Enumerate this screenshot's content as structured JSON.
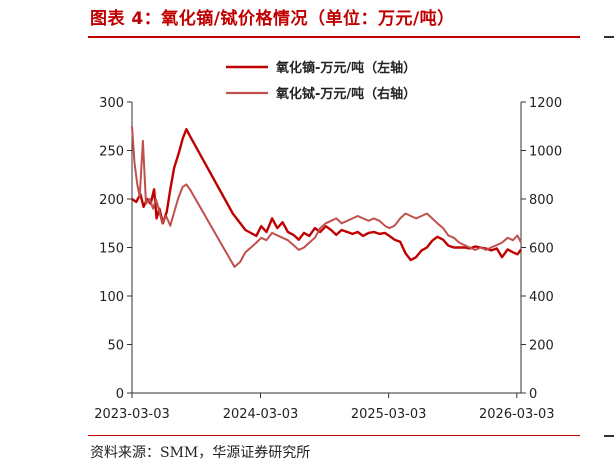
{
  "title": "图表 4：氧化镝/铽价格情况（单位：万元/吨）",
  "source": "资料来源：SMM，华源证券研究所",
  "colors": {
    "accent": "#c00000",
    "series1": "#c00000",
    "series2": "#c0504d"
  },
  "chart_data": {
    "type": "line",
    "title": "图表 4：氧化镝/铽价格情况（单位：万元/吨）",
    "x_ticks": [
      "2023-03-03",
      "2024-03-03",
      "2025-03-03",
      "2026-03-03"
    ],
    "x_range": [
      "2023-03-03",
      "2026-03-15"
    ],
    "y_left": {
      "range": [
        0,
        300
      ],
      "ticks": [
        0,
        50,
        100,
        150,
        200,
        250,
        300
      ]
    },
    "y_right": {
      "range": [
        0,
        1200
      ],
      "ticks": [
        0,
        200,
        400,
        600,
        800,
        1000,
        1200
      ]
    },
    "grid": false,
    "legend_position": "top-center",
    "series": [
      {
        "name": "氧化镝-万元/吨（左轴）",
        "axis": "left",
        "color": "#c00000",
        "points": [
          [
            "2023-03-03",
            200
          ],
          [
            "2023-03-15",
            197
          ],
          [
            "2023-03-27",
            205
          ],
          [
            "2023-04-05",
            192
          ],
          [
            "2023-04-15",
            200
          ],
          [
            "2023-04-25",
            195
          ],
          [
            "2023-05-05",
            210
          ],
          [
            "2023-05-12",
            180
          ],
          [
            "2023-05-20",
            190
          ],
          [
            "2023-05-30",
            175
          ],
          [
            "2023-06-10",
            187
          ],
          [
            "2023-06-20",
            210
          ],
          [
            "2023-07-01",
            232
          ],
          [
            "2023-07-15",
            248
          ],
          [
            "2023-07-25",
            262
          ],
          [
            "2023-08-05",
            272
          ],
          [
            "2023-08-15",
            265
          ],
          [
            "2023-12-15",
            185
          ],
          [
            "2024-01-20",
            168
          ],
          [
            "2024-02-20",
            162
          ],
          [
            "2024-03-05",
            172
          ],
          [
            "2024-03-20",
            166
          ],
          [
            "2024-04-05",
            180
          ],
          [
            "2024-04-20",
            170
          ],
          [
            "2024-05-05",
            176
          ],
          [
            "2024-05-20",
            166
          ],
          [
            "2024-06-05",
            163
          ],
          [
            "2024-06-20",
            158
          ],
          [
            "2024-07-05",
            165
          ],
          [
            "2024-07-20",
            162
          ],
          [
            "2024-08-05",
            170
          ],
          [
            "2024-08-20",
            166
          ],
          [
            "2024-09-05",
            172
          ],
          [
            "2024-09-20",
            168
          ],
          [
            "2024-10-05",
            163
          ],
          [
            "2024-10-20",
            168
          ],
          [
            "2024-11-05",
            166
          ],
          [
            "2024-11-20",
            164
          ],
          [
            "2024-12-05",
            166
          ],
          [
            "2024-12-20",
            162
          ],
          [
            "2025-01-05",
            165
          ],
          [
            "2025-01-20",
            166
          ],
          [
            "2025-02-05",
            164
          ],
          [
            "2025-02-20",
            165
          ],
          [
            "2025-03-05",
            162
          ],
          [
            "2025-03-20",
            158
          ],
          [
            "2025-04-05",
            156
          ],
          [
            "2025-04-20",
            144
          ],
          [
            "2025-05-05",
            137
          ],
          [
            "2025-05-20",
            140
          ],
          [
            "2025-06-05",
            147
          ],
          [
            "2025-06-20",
            150
          ],
          [
            "2025-07-05",
            157
          ],
          [
            "2025-07-20",
            161
          ],
          [
            "2025-08-05",
            158
          ],
          [
            "2025-08-20",
            152
          ],
          [
            "2025-09-05",
            150
          ],
          [
            "2025-09-20",
            150
          ],
          [
            "2025-10-05",
            150
          ],
          [
            "2025-10-20",
            149
          ],
          [
            "2025-11-05",
            151
          ],
          [
            "2025-11-20",
            150
          ],
          [
            "2025-12-05",
            149
          ],
          [
            "2025-12-20",
            147
          ],
          [
            "2026-01-05",
            149
          ],
          [
            "2026-01-20",
            140
          ],
          [
            "2026-02-05",
            148
          ],
          [
            "2026-02-20",
            145
          ],
          [
            "2026-03-05",
            143
          ],
          [
            "2026-03-15",
            148
          ]
        ]
      },
      {
        "name": "氧化铽-万元/吨（右轴）",
        "axis": "right",
        "color": "#c0504d",
        "points": [
          [
            "2023-03-03",
            1100
          ],
          [
            "2023-03-10",
            950
          ],
          [
            "2023-03-18",
            860
          ],
          [
            "2023-03-25",
            810
          ],
          [
            "2023-04-03",
            1040
          ],
          [
            "2023-04-12",
            780
          ],
          [
            "2023-04-22",
            800
          ],
          [
            "2023-05-02",
            760
          ],
          [
            "2023-05-10",
            800
          ],
          [
            "2023-05-18",
            760
          ],
          [
            "2023-05-28",
            700
          ],
          [
            "2023-06-08",
            730
          ],
          [
            "2023-06-20",
            690
          ],
          [
            "2023-06-30",
            740
          ],
          [
            "2023-07-12",
            800
          ],
          [
            "2023-07-25",
            850
          ],
          [
            "2023-08-05",
            860
          ],
          [
            "2023-08-15",
            840
          ],
          [
            "2023-12-20",
            520
          ],
          [
            "2024-01-05",
            540
          ],
          [
            "2024-01-20",
            580
          ],
          [
            "2024-02-05",
            600
          ],
          [
            "2024-02-20",
            620
          ],
          [
            "2024-03-05",
            640
          ],
          [
            "2024-03-20",
            630
          ],
          [
            "2024-04-05",
            660
          ],
          [
            "2024-04-20",
            650
          ],
          [
            "2024-05-05",
            640
          ],
          [
            "2024-05-20",
            630
          ],
          [
            "2024-06-05",
            610
          ],
          [
            "2024-06-20",
            590
          ],
          [
            "2024-07-05",
            600
          ],
          [
            "2024-07-20",
            620
          ],
          [
            "2024-08-05",
            640
          ],
          [
            "2024-08-20",
            680
          ],
          [
            "2024-09-05",
            700
          ],
          [
            "2024-09-20",
            710
          ],
          [
            "2024-10-05",
            720
          ],
          [
            "2024-10-20",
            700
          ],
          [
            "2024-11-05",
            710
          ],
          [
            "2024-11-20",
            720
          ],
          [
            "2024-12-05",
            730
          ],
          [
            "2024-12-20",
            720
          ],
          [
            "2025-01-05",
            710
          ],
          [
            "2025-01-20",
            720
          ],
          [
            "2025-02-05",
            710
          ],
          [
            "2025-02-20",
            690
          ],
          [
            "2025-03-05",
            680
          ],
          [
            "2025-03-20",
            690
          ],
          [
            "2025-04-05",
            720
          ],
          [
            "2025-04-20",
            740
          ],
          [
            "2025-05-05",
            730
          ],
          [
            "2025-05-20",
            720
          ],
          [
            "2025-06-05",
            730
          ],
          [
            "2025-06-20",
            740
          ],
          [
            "2025-07-05",
            720
          ],
          [
            "2025-07-20",
            700
          ],
          [
            "2025-08-05",
            680
          ],
          [
            "2025-08-20",
            650
          ],
          [
            "2025-09-05",
            640
          ],
          [
            "2025-09-20",
            620
          ],
          [
            "2025-10-05",
            610
          ],
          [
            "2025-10-20",
            600
          ],
          [
            "2025-11-05",
            590
          ],
          [
            "2025-11-20",
            600
          ],
          [
            "2025-12-05",
            590
          ],
          [
            "2025-12-20",
            600
          ],
          [
            "2026-01-05",
            610
          ],
          [
            "2026-01-20",
            620
          ],
          [
            "2026-02-05",
            640
          ],
          [
            "2026-02-20",
            630
          ],
          [
            "2026-03-05",
            650
          ],
          [
            "2026-03-15",
            620
          ]
        ]
      }
    ]
  }
}
